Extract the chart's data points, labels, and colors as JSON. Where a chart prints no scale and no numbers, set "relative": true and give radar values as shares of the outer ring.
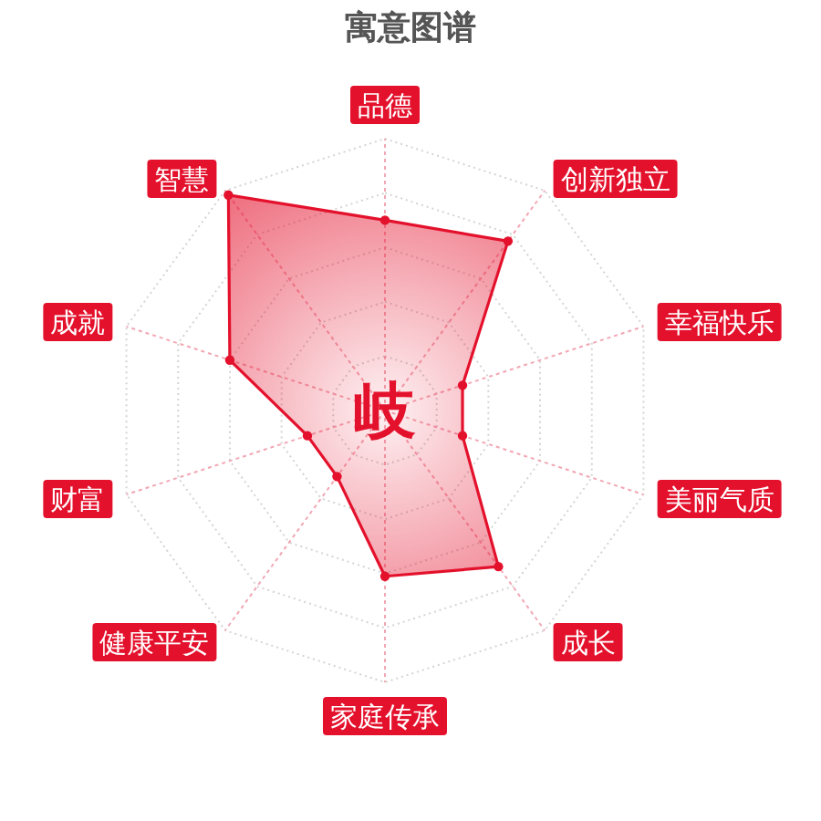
{
  "chart_data": {
    "type": "radar",
    "title": "寓意图谱",
    "categories": [
      "品德",
      "创新独立",
      "幸福快乐",
      "美丽气质",
      "成长",
      "家庭传承",
      "健康平安",
      "财富",
      "成就",
      "智慧"
    ],
    "relative": true,
    "series": [
      {
        "color": "#e4112c",
        "values": [
          0.7,
          0.77,
          0.3,
          0.3,
          0.71,
          0.61,
          0.3,
          0.3,
          0.6,
          0.98
        ]
      }
    ],
    "grid": true,
    "annotations": [
      "岐"
    ]
  }
}
